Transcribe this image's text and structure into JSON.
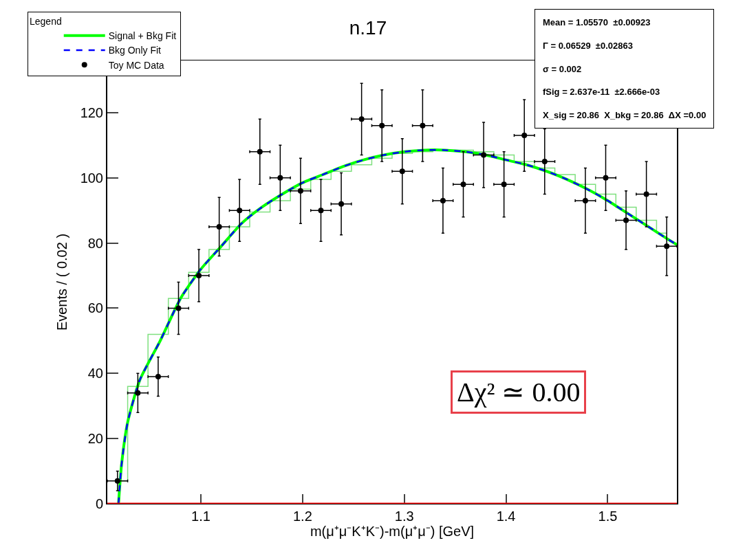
{
  "chart_data": {
    "type": "scatter",
    "title": "n.17",
    "xlabel": "m(μ⁺μ⁻K⁺K⁻)-m(μ⁺μ⁻) [GeV]",
    "ylabel": "Events / ( 0.02 )",
    "legend_title": "Legend",
    "legend": "top left",
    "xlim": [
      1.008,
      1.568
    ],
    "xticks": [
      1.1,
      1.2,
      1.3,
      1.4,
      1.5
    ],
    "ylim": [
      0,
      136
    ],
    "yticks": [
      0,
      20,
      40,
      60,
      80,
      100,
      120
    ],
    "grid": false,
    "series": [
      {
        "type": "step",
        "color": "#7fe07f",
        "x": [
          1.018,
          1.038,
          1.058,
          1.078,
          1.098,
          1.118,
          1.138,
          1.158,
          1.178,
          1.198,
          1.218,
          1.238,
          1.258,
          1.278,
          1.298,
          1.318,
          1.338,
          1.358,
          1.378,
          1.398,
          1.418,
          1.438,
          1.458,
          1.478,
          1.498,
          1.518,
          1.538,
          1.558
        ],
        "values": [
          7,
          36,
          52,
          63,
          71,
          78,
          85,
          89.5,
          93,
          96.5,
          99.5,
          102,
          104,
          106,
          107.5,
          108,
          108.5,
          108.5,
          108,
          107,
          105,
          103,
          101,
          98,
          95,
          91,
          87,
          83
        ]
      },
      {
        "type": "line",
        "name": "Signal + Bkg Fit",
        "color": "#00ff00",
        "line_style": "solid",
        "x": [
          1.019,
          1.022,
          1.028,
          1.04,
          1.06,
          1.08,
          1.1,
          1.12,
          1.14,
          1.16,
          1.18,
          1.2,
          1.22,
          1.24,
          1.26,
          1.28,
          1.3,
          1.32,
          1.34,
          1.36,
          1.38,
          1.4,
          1.42,
          1.44,
          1.46,
          1.48,
          1.5,
          1.52,
          1.54,
          1.56,
          1.568
        ],
        "values": [
          0,
          12,
          25,
          38,
          50,
          63,
          72,
          79,
          86,
          91,
          95,
          98.5,
          101,
          103.5,
          105.5,
          107,
          108,
          108.5,
          108.5,
          108,
          107,
          105.5,
          104,
          102,
          99.5,
          96.5,
          93,
          89,
          85,
          81,
          79.5
        ]
      },
      {
        "type": "line",
        "name": "Bkg Only Fit",
        "color": "#0000ff",
        "line_style": "dashed",
        "x": [
          1.019,
          1.022,
          1.028,
          1.04,
          1.06,
          1.08,
          1.1,
          1.12,
          1.14,
          1.16,
          1.18,
          1.2,
          1.22,
          1.24,
          1.26,
          1.28,
          1.3,
          1.32,
          1.34,
          1.36,
          1.38,
          1.4,
          1.42,
          1.44,
          1.46,
          1.48,
          1.5,
          1.52,
          1.54,
          1.56,
          1.568
        ],
        "values": [
          0,
          12,
          25,
          38,
          50,
          63,
          72,
          79,
          86,
          91,
          95,
          98.5,
          101,
          103.5,
          105.5,
          107,
          108,
          108.5,
          108.5,
          108,
          107,
          105.5,
          104,
          102,
          99.5,
          96.5,
          93,
          89,
          85,
          81,
          79.5
        ]
      },
      {
        "name": "Toy MC Data",
        "color": "#000000",
        "marker": "circle",
        "x": [
          1.018,
          1.038,
          1.058,
          1.078,
          1.098,
          1.118,
          1.138,
          1.158,
          1.178,
          1.198,
          1.218,
          1.238,
          1.258,
          1.278,
          1.298,
          1.318,
          1.338,
          1.358,
          1.378,
          1.398,
          1.418,
          1.438,
          1.458,
          1.478,
          1.498,
          1.518,
          1.538,
          1.558
        ],
        "values": [
          7,
          34,
          39,
          60,
          70,
          85,
          90,
          108,
          100,
          96,
          90,
          92,
          118,
          116,
          102,
          116,
          93,
          98,
          107,
          98,
          113,
          105,
          null,
          93,
          100,
          87,
          95,
          79
        ],
        "errors": [
          3,
          6,
          6,
          8,
          8,
          9,
          9.5,
          10,
          10,
          10,
          9.5,
          9.5,
          11,
          11,
          10,
          11,
          10,
          10,
          10,
          10,
          11,
          10,
          null,
          10,
          10,
          9,
          10,
          9
        ],
        "xerrors": [
          0.01,
          0.01,
          0.01,
          0.01,
          0.01,
          0.01,
          0.01,
          0.01,
          0.01,
          0.01,
          0.01,
          0.01,
          0.01,
          0.01,
          0.01,
          0.01,
          0.01,
          0.01,
          0.01,
          0.01,
          0.01,
          0.01,
          null,
          0.01,
          0.01,
          0.01,
          0.01,
          0.01
        ]
      }
    ],
    "ref_lines": [
      {
        "axis": "y",
        "value": 0,
        "color": "#ff0000"
      }
    ],
    "annotations": [
      "Mean = 1.05570  ±0.00923",
      "Γ = 0.06529  ±0.02863",
      "σ = 0.002",
      "fSig = 2.637e-11  ±2.666e-03",
      "Χ_sig = 20.86  Χ_bkg = 20.86  ΔΧ =0.00",
      "Δχ² ≃ 0.00"
    ]
  }
}
